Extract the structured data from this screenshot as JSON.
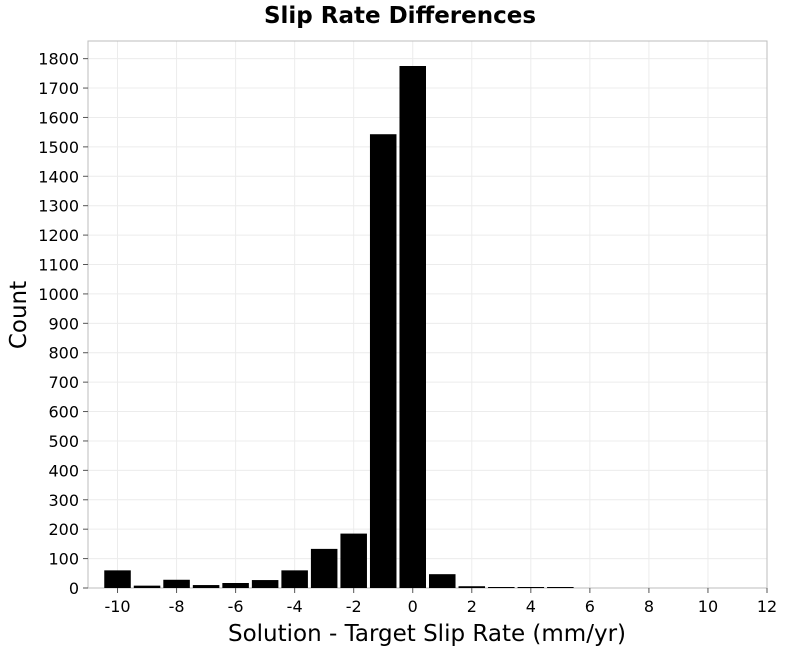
{
  "chart_data": {
    "type": "bar",
    "title": "Slip Rate Differences",
    "xlabel": "Solution - Target Slip Rate (mm/yr)",
    "ylabel": "Count",
    "xlim": [
      -11,
      12
    ],
    "ylim": [
      0,
      1860
    ],
    "bin_width": 1,
    "x_ticks": [
      -10,
      -8,
      -6,
      -4,
      -2,
      0,
      2,
      4,
      6,
      8,
      10,
      12
    ],
    "y_ticks": [
      0,
      100,
      200,
      300,
      400,
      500,
      600,
      700,
      800,
      900,
      1000,
      1100,
      1200,
      1300,
      1400,
      1500,
      1600,
      1700,
      1800
    ],
    "grid": true,
    "bar_color": "#000000",
    "bins": [
      {
        "x": -10,
        "count": 60
      },
      {
        "x": -9,
        "count": 8
      },
      {
        "x": -8,
        "count": 28
      },
      {
        "x": -7,
        "count": 10
      },
      {
        "x": -6,
        "count": 17
      },
      {
        "x": -5,
        "count": 27
      },
      {
        "x": -4,
        "count": 60
      },
      {
        "x": -3,
        "count": 133
      },
      {
        "x": -2,
        "count": 185
      },
      {
        "x": -1,
        "count": 1543
      },
      {
        "x": 0,
        "count": 1775
      },
      {
        "x": 1,
        "count": 47
      },
      {
        "x": 2,
        "count": 6
      },
      {
        "x": 3,
        "count": 3
      },
      {
        "x": 4,
        "count": 2
      },
      {
        "x": 5,
        "count": 1
      }
    ]
  }
}
